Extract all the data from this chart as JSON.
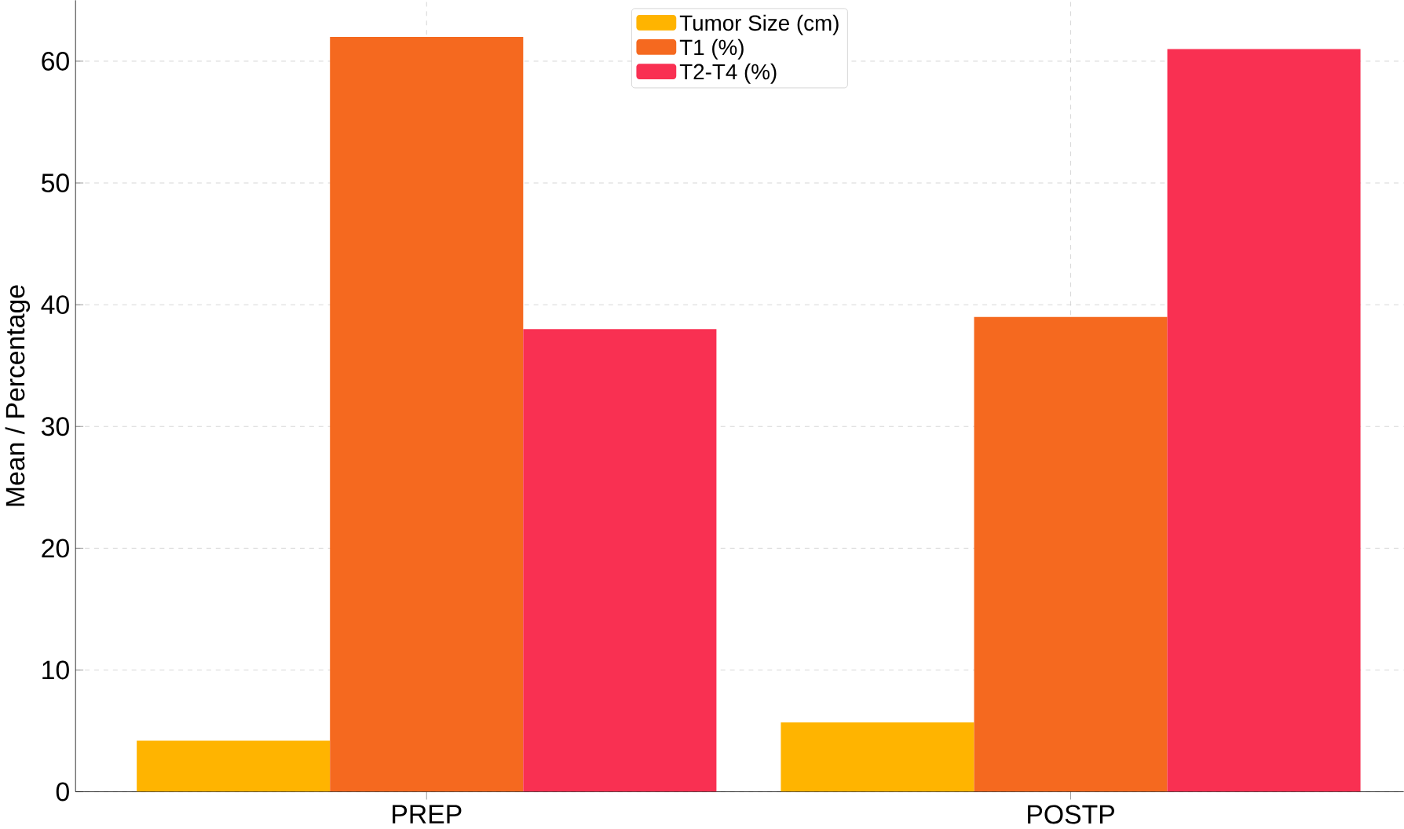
{
  "chart_data": {
    "type": "bar",
    "ylabel": "Mean / Percentage",
    "categories": [
      "PREP",
      "POSTP"
    ],
    "series": [
      {
        "name": "Tumor Size (cm)",
        "color": "#ffb400",
        "values": [
          4.2,
          5.7
        ]
      },
      {
        "name": "T1 (%)",
        "color": "#f5691f",
        "values": [
          62,
          39
        ]
      },
      {
        "name": "T2-T4 (%)",
        "color": "#f93052",
        "values": [
          38,
          61
        ]
      }
    ],
    "ylim": [
      0,
      65
    ],
    "yticks": [
      0,
      10,
      20,
      30,
      40,
      50,
      60
    ],
    "grid": true,
    "legend": "top"
  }
}
